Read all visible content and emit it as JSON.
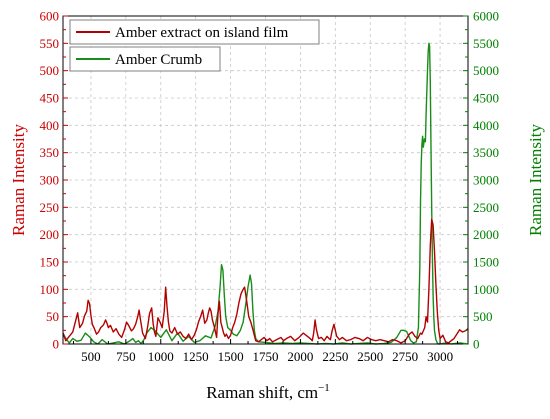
{
  "colors": {
    "amber_extract": "#b30000",
    "amber_crumb": "#1a8c1a",
    "axis_left": "#cc0000",
    "axis_right": "#008000",
    "frame": "#000000",
    "grid": "#c8c8c8"
  },
  "chart_data": {
    "type": "line",
    "grid": true,
    "legend_position": "top-left",
    "xlabel": "Raman shift, cm",
    "xlabel_superscript": "−1",
    "ylabel_left": "Raman Intensity",
    "ylabel_right": "Raman Intensity",
    "xlim": [
      300,
      3200
    ],
    "ylim_left": [
      0,
      600
    ],
    "ylim_right": [
      0,
      6000
    ],
    "x_ticks": [
      "500",
      "750",
      "1000",
      "1250",
      "1500",
      "1750",
      "2000",
      "2250",
      "2500",
      "2750",
      "3000"
    ],
    "y_left_ticks": [
      "0",
      "50",
      "100",
      "150",
      "200",
      "250",
      "300",
      "350",
      "400",
      "450",
      "500",
      "550",
      "600"
    ],
    "y_right_ticks": [
      "0",
      "500",
      "1000",
      "1500",
      "2000",
      "2500",
      "3000",
      "3500",
      "4000",
      "4500",
      "5000",
      "5500",
      "6000"
    ],
    "series": [
      {
        "name": "Amber extract on island film",
        "axis": "left",
        "color": "#b30000",
        "x": [
          300,
          320,
          345,
          370,
          390,
          405,
          420,
          440,
          455,
          470,
          480,
          490,
          500,
          510,
          525,
          540,
          555,
          570,
          590,
          605,
          615,
          625,
          640,
          660,
          680,
          700,
          720,
          740,
          755,
          770,
          790,
          805,
          820,
          835,
          845,
          855,
          870,
          890,
          905,
          920,
          935,
          945,
          955,
          965,
          980,
          995,
          1010,
          1025,
          1035,
          1045,
          1055,
          1065,
          1080,
          1100,
          1120,
          1140,
          1160,
          1180,
          1200,
          1220,
          1240,
          1255,
          1270,
          1285,
          1300,
          1315,
          1330,
          1340,
          1350,
          1360,
          1370,
          1385,
          1400,
          1410,
          1420,
          1430,
          1440,
          1450,
          1460,
          1470,
          1485,
          1500,
          1515,
          1530,
          1545,
          1560,
          1575,
          1590,
          1600,
          1610,
          1620,
          1630,
          1645,
          1660,
          1680,
          1700,
          1720,
          1740,
          1760,
          1780,
          1800,
          1830,
          1860,
          1880,
          1900,
          1930,
          1960,
          1990,
          2020,
          2050,
          2070,
          2085,
          2095,
          2105,
          2115,
          2130,
          2150,
          2170,
          2190,
          2205,
          2215,
          2225,
          2240,
          2260,
          2280,
          2300,
          2330,
          2360,
          2390,
          2420,
          2450,
          2480,
          2510,
          2540,
          2570,
          2600,
          2630,
          2660,
          2690,
          2720,
          2750,
          2780,
          2800,
          2820,
          2840,
          2860,
          2870,
          2880,
          2890,
          2900,
          2910,
          2920,
          2930,
          2940,
          2950,
          2960,
          2970,
          2980,
          2990,
          3000,
          3020,
          3040,
          3060,
          3080,
          3100,
          3120,
          3140,
          3160,
          3180,
          3200
        ],
        "y": [
          20,
          6,
          14,
          22,
          42,
          57,
          30,
          38,
          52,
          60,
          80,
          74,
          52,
          36,
          28,
          18,
          22,
          30,
          35,
          44,
          38,
          30,
          34,
          22,
          28,
          18,
          12,
          26,
          40,
          34,
          24,
          28,
          36,
          50,
          62,
          44,
          20,
          10,
          30,
          56,
          66,
          38,
          22,
          14,
          48,
          40,
          30,
          60,
          104,
          68,
          40,
          24,
          20,
          30,
          18,
          22,
          14,
          10,
          18,
          8,
          16,
          26,
          40,
          50,
          62,
          38,
          44,
          56,
          66,
          60,
          44,
          30,
          12,
          56,
          78,
          40,
          30,
          20,
          14,
          18,
          10,
          16,
          30,
          40,
          55,
          76,
          92,
          100,
          104,
          88,
          70,
          50,
          40,
          26,
          6,
          4,
          8,
          12,
          6,
          10,
          4,
          8,
          12,
          6,
          10,
          14,
          6,
          12,
          20,
          14,
          10,
          6,
          20,
          44,
          26,
          10,
          12,
          6,
          14,
          10,
          8,
          22,
          36,
          14,
          8,
          12,
          6,
          8,
          12,
          10,
          6,
          12,
          8,
          6,
          8,
          6,
          4,
          8,
          6,
          2,
          6,
          18,
          22,
          14,
          10,
          20,
          18,
          24,
          30,
          50,
          40,
          100,
          180,
          228,
          218,
          170,
          110,
          60,
          26,
          10,
          16,
          4,
          2,
          6,
          10,
          18,
          26,
          22,
          24,
          28
        ]
      },
      {
        "name": "Amber Crumb",
        "axis": "right",
        "color": "#1a8c1a",
        "x": [
          300,
          320,
          345,
          370,
          400,
          430,
          460,
          490,
          520,
          550,
          580,
          620,
          660,
          700,
          740,
          780,
          800,
          820,
          840,
          860,
          880,
          900,
          930,
          960,
          1000,
          1040,
          1080,
          1120,
          1160,
          1200,
          1240,
          1280,
          1320,
          1360,
          1390,
          1410,
          1425,
          1435,
          1445,
          1455,
          1465,
          1480,
          1500,
          1520,
          1545,
          1570,
          1590,
          1610,
          1625,
          1640,
          1650,
          1660,
          1670,
          1680,
          1700,
          1740,
          1780,
          1820,
          1880,
          1940,
          2000,
          2060,
          2120,
          2180,
          2240,
          2300,
          2360,
          2420,
          2480,
          2540,
          2600,
          2650,
          2690,
          2720,
          2740,
          2760,
          2775,
          2790,
          2810,
          2830,
          2845,
          2855,
          2860,
          2865,
          2870,
          2875,
          2880,
          2888,
          2895,
          2900,
          2905,
          2910,
          2915,
          2920,
          2925,
          2930,
          2935,
          2940,
          2945,
          2950,
          2955,
          2960,
          2970,
          2980,
          2990,
          3000,
          3020,
          3050,
          3080,
          3110,
          3140,
          3170,
          3200
        ],
        "y": [
          200,
          100,
          20,
          100,
          50,
          70,
          200,
          130,
          40,
          0,
          80,
          0,
          20,
          40,
          0,
          60,
          100,
          30,
          60,
          10,
          80,
          200,
          300,
          240,
          120,
          260,
          60,
          200,
          50,
          140,
          30,
          60,
          150,
          110,
          330,
          600,
          1050,
          1450,
          1350,
          900,
          500,
          300,
          250,
          180,
          150,
          250,
          400,
          750,
          1050,
          1260,
          1100,
          600,
          250,
          100,
          40,
          30,
          20,
          10,
          20,
          10,
          20,
          10,
          0,
          10,
          0,
          20,
          0,
          10,
          20,
          0,
          10,
          30,
          120,
          250,
          250,
          230,
          150,
          60,
          20,
          40,
          300,
          1400,
          2600,
          3300,
          3650,
          3800,
          3600,
          3750,
          3700,
          4200,
          4600,
          5000,
          5350,
          5500,
          5450,
          4800,
          3600,
          2500,
          1600,
          900,
          500,
          250,
          80,
          20,
          0,
          0,
          10,
          20,
          0,
          10,
          20,
          10,
          0
        ]
      }
    ]
  }
}
